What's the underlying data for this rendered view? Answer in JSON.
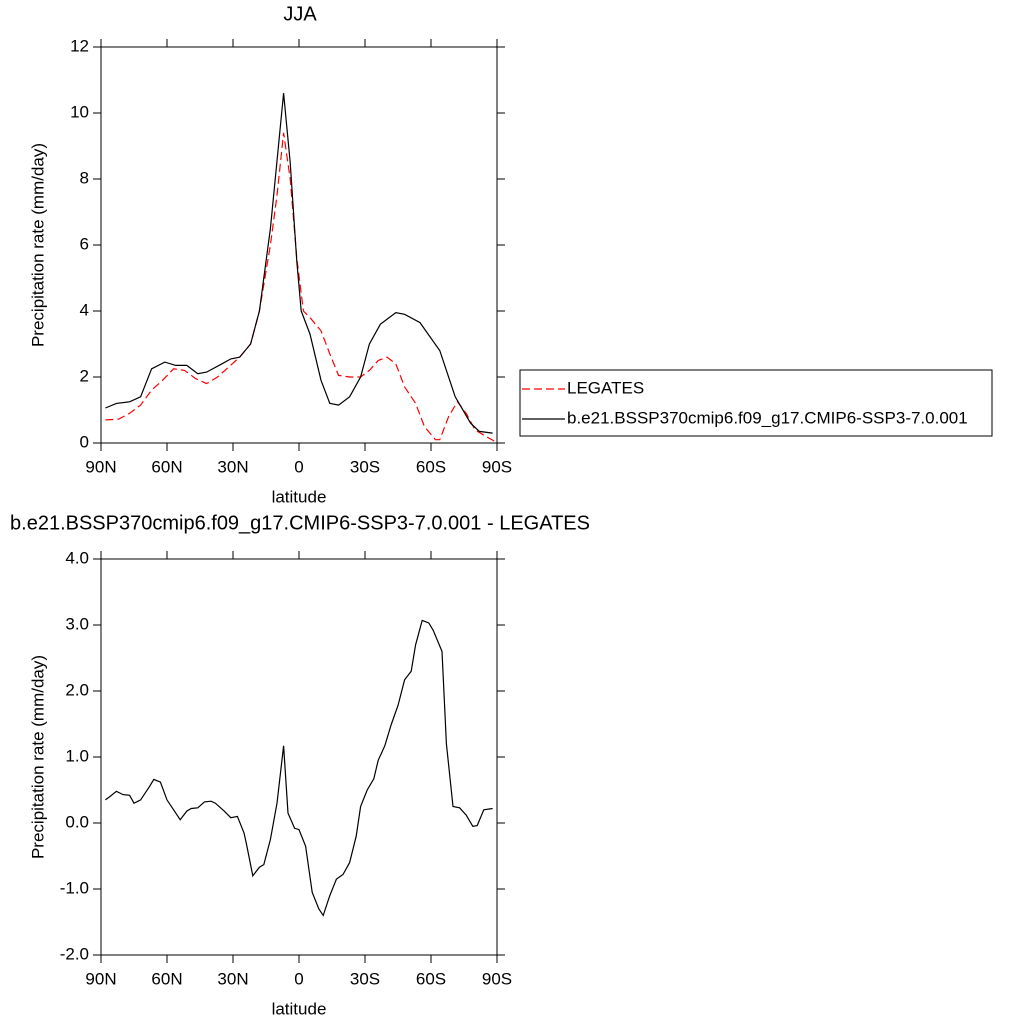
{
  "chart_data": [
    {
      "type": "line",
      "title": "JJA",
      "xlabel": "latitude",
      "ylabel": "Precipitation rate (mm/day)",
      "xlim": [
        90,
        -90
      ],
      "ylim": [
        0,
        12
      ],
      "xticks": [
        {
          "value": 90,
          "label": "90N"
        },
        {
          "value": 60,
          "label": "60N"
        },
        {
          "value": 30,
          "label": "30N"
        },
        {
          "value": 0,
          "label": "0"
        },
        {
          "value": -30,
          "label": "30S"
        },
        {
          "value": -60,
          "label": "60S"
        },
        {
          "value": -90,
          "label": "90S"
        }
      ],
      "yticks": [
        0,
        2,
        4,
        6,
        8,
        10,
        12
      ],
      "legend": "right",
      "series": [
        {
          "name": "LEGATES",
          "color": "#ff0000",
          "line_style": "dashed",
          "x": [
            88,
            82,
            77,
            72,
            67,
            62,
            57,
            52,
            47,
            42,
            37,
            32,
            27,
            22,
            18,
            13,
            10,
            7,
            4,
            1,
            -2,
            -5,
            -10,
            -14,
            -18,
            -23,
            -28,
            -32,
            -36,
            -40,
            -44,
            -48,
            -53,
            -57,
            -62,
            -64,
            -68,
            -72,
            -76,
            -80,
            -85,
            -89
          ],
          "values": [
            0.7,
            0.72,
            0.9,
            1.15,
            1.6,
            1.9,
            2.25,
            2.2,
            1.95,
            1.8,
            2.0,
            2.3,
            2.6,
            3.0,
            4.0,
            6.0,
            7.5,
            9.4,
            8.0,
            5.6,
            4.0,
            3.8,
            3.4,
            2.7,
            2.05,
            2.0,
            2.0,
            2.2,
            2.5,
            2.6,
            2.4,
            1.7,
            1.2,
            0.5,
            0.1,
            0.1,
            0.8,
            1.25,
            0.9,
            0.4,
            0.2,
            0.05
          ]
        },
        {
          "name": "b.e21.BSSP370cmip6.f09_g17.CMIP6-SSP3-7.0.001",
          "color": "#000000",
          "line_style": "solid",
          "x": [
            88,
            83,
            77,
            72,
            67,
            61,
            56,
            51,
            46,
            42,
            35,
            31,
            27,
            22,
            18,
            13,
            7,
            4,
            1,
            -1,
            -5,
            -10,
            -14,
            -18,
            -23,
            -28,
            -32,
            -37,
            -44,
            -48,
            -55,
            -64,
            -71,
            -78,
            -82,
            -88
          ],
          "values": [
            1.06,
            1.2,
            1.25,
            1.4,
            2.25,
            2.45,
            2.35,
            2.35,
            2.1,
            2.15,
            2.4,
            2.55,
            2.6,
            3.0,
            4.0,
            6.5,
            10.6,
            8.5,
            5.5,
            4.0,
            3.3,
            1.9,
            1.2,
            1.15,
            1.4,
            2.0,
            3.0,
            3.6,
            3.95,
            3.9,
            3.65,
            2.8,
            1.4,
            0.6,
            0.35,
            0.3
          ]
        }
      ]
    },
    {
      "type": "line",
      "title": "b.e21.BSSP370cmip6.f09_g17.CMIP6-SSP3-7.0.001 - LEGATES",
      "xlabel": "latitude",
      "ylabel": "Precipitation rate (mm/day)",
      "xlim": [
        90,
        -90
      ],
      "ylim": [
        -2,
        4
      ],
      "xticks": [
        {
          "value": 90,
          "label": "90N"
        },
        {
          "value": 60,
          "label": "60N"
        },
        {
          "value": 30,
          "label": "30N"
        },
        {
          "value": 0,
          "label": "0"
        },
        {
          "value": -30,
          "label": "30S"
        },
        {
          "value": -60,
          "label": "60S"
        },
        {
          "value": -90,
          "label": "90S"
        }
      ],
      "yticks": [
        {
          "value": -2,
          "label": "-2.0"
        },
        {
          "value": -1,
          "label": "-1.0"
        },
        {
          "value": 0,
          "label": "0.0"
        },
        {
          "value": 1,
          "label": "1.0"
        },
        {
          "value": 2,
          "label": "2.0"
        },
        {
          "value": 3,
          "label": "3.0"
        },
        {
          "value": 4,
          "label": "4.0"
        }
      ],
      "series": [
        {
          "color": "#000000",
          "line_style": "solid",
          "x": [
            88,
            86,
            83,
            80,
            77,
            75,
            72,
            68,
            66,
            63,
            60,
            57,
            54,
            51,
            49,
            46,
            43,
            40,
            38,
            34,
            31,
            28,
            25,
            24,
            21,
            18,
            16,
            13,
            10,
            7,
            5,
            2,
            0,
            -3,
            -6,
            -9,
            -11,
            -14,
            -17,
            -20,
            -23,
            -26,
            -28,
            -31,
            -34,
            -36,
            -39,
            -42,
            -45,
            -48,
            -51,
            -53,
            -56,
            -59,
            -61,
            -65,
            -67,
            -70,
            -73,
            -76,
            -79,
            -81,
            -84,
            -88
          ],
          "values": [
            0.35,
            0.4,
            0.48,
            0.43,
            0.42,
            0.3,
            0.35,
            0.55,
            0.66,
            0.62,
            0.35,
            0.2,
            0.05,
            0.18,
            0.22,
            0.23,
            0.32,
            0.33,
            0.3,
            0.18,
            0.08,
            0.1,
            -0.15,
            -0.3,
            -0.8,
            -0.67,
            -0.63,
            -0.25,
            0.3,
            1.17,
            0.15,
            -0.08,
            -0.1,
            -0.35,
            -1.05,
            -1.3,
            -1.4,
            -1.1,
            -0.85,
            -0.78,
            -0.6,
            -0.2,
            0.25,
            0.5,
            0.67,
            0.95,
            1.17,
            1.5,
            1.78,
            2.17,
            2.3,
            2.7,
            3.07,
            3.03,
            2.92,
            2.6,
            1.2,
            0.25,
            0.23,
            0.12,
            -0.05,
            -0.04,
            0.2,
            0.22
          ]
        }
      ]
    }
  ]
}
